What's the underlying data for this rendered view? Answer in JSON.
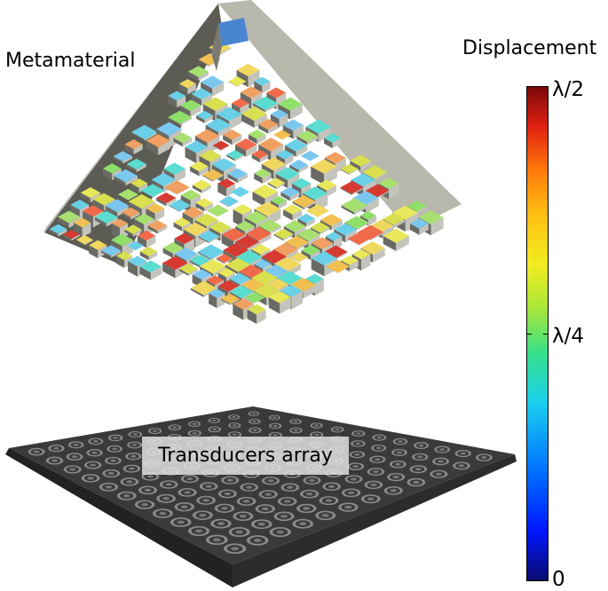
{
  "labels": {
    "metamaterial": "Metamaterial",
    "displacement": "Displacement",
    "transducers": "Transducers array"
  },
  "colorbar": {
    "ticks": [
      "λ/2",
      "λ/4",
      "0"
    ],
    "colors": [
      "#0b0b70",
      "#0016ff",
      "#0070ff",
      "#1ad0ee",
      "#35e08a",
      "#a8e63a",
      "#f2ec20",
      "#ffc014",
      "#ff7a0a",
      "#e02010",
      "#7a0a0a"
    ]
  }
}
